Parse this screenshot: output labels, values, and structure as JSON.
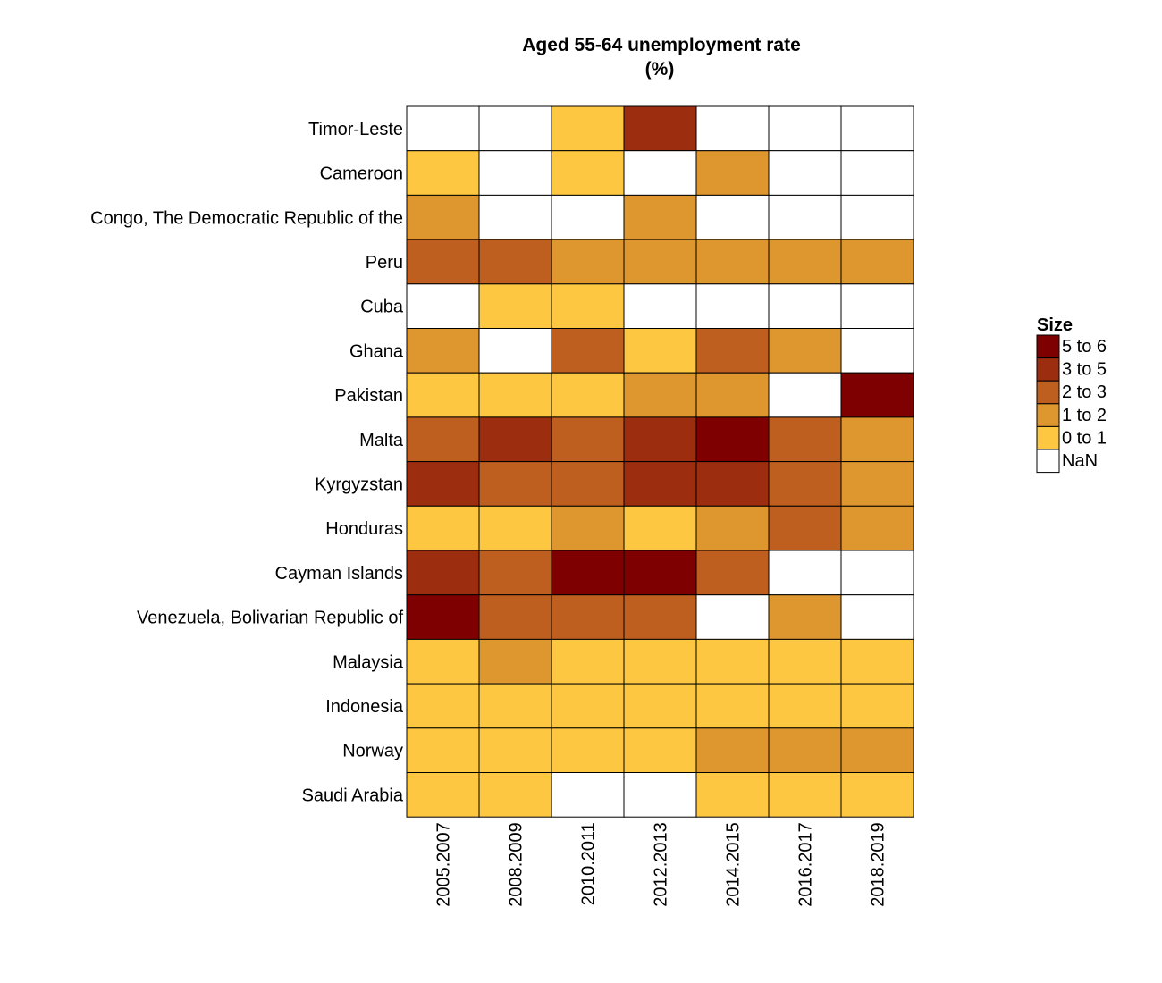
{
  "chart_data": {
    "type": "heatmap",
    "title": "Aged 55-64 unemployment rate",
    "subtitle": "(%)",
    "columns": [
      "2005.2007",
      "2008.2009",
      "2010.2011",
      "2012.2013",
      "2014.2015",
      "2016.2017",
      "2018.2019"
    ],
    "rows": [
      "Timor-Leste",
      "Cameroon",
      "Congo, The Democratic Republic of the",
      "Peru",
      "Cuba",
      "Ghana",
      "Pakistan",
      "Malta",
      "Kyrgyzstan",
      "Honduras",
      "Cayman Islands",
      "Venezuela, Bolivarian Republic of",
      "Malaysia",
      "Indonesia",
      "Norway",
      "Saudi Arabia"
    ],
    "cells": [
      [
        "NaN",
        "NaN",
        "0 to 1",
        "3 to 5",
        "NaN",
        "NaN",
        "NaN"
      ],
      [
        "0 to 1",
        "NaN",
        "0 to 1",
        "NaN",
        "1 to 2",
        "NaN",
        "NaN"
      ],
      [
        "1 to 2",
        "NaN",
        "NaN",
        "1 to 2",
        "NaN",
        "NaN",
        "NaN"
      ],
      [
        "2 to 3",
        "2 to 3",
        "1 to 2",
        "1 to 2",
        "1 to 2",
        "1 to 2",
        "1 to 2"
      ],
      [
        "NaN",
        "0 to 1",
        "0 to 1",
        "NaN",
        "NaN",
        "NaN",
        "NaN"
      ],
      [
        "1 to 2",
        "NaN",
        "2 to 3",
        "0 to 1",
        "2 to 3",
        "1 to 2",
        "NaN"
      ],
      [
        "0 to 1",
        "0 to 1",
        "0 to 1",
        "1 to 2",
        "1 to 2",
        "NaN",
        "5 to 6"
      ],
      [
        "2 to 3",
        "3 to 5",
        "2 to 3",
        "3 to 5",
        "5 to 6",
        "2 to 3",
        "1 to 2"
      ],
      [
        "3 to 5",
        "2 to 3",
        "2 to 3",
        "3 to 5",
        "3 to 5",
        "2 to 3",
        "1 to 2"
      ],
      [
        "0 to 1",
        "0 to 1",
        "1 to 2",
        "0 to 1",
        "1 to 2",
        "2 to 3",
        "1 to 2"
      ],
      [
        "3 to 5",
        "2 to 3",
        "5 to 6",
        "5 to 6",
        "2 to 3",
        "NaN",
        "NaN"
      ],
      [
        "5 to 6",
        "2 to 3",
        "2 to 3",
        "2 to 3",
        "NaN",
        "1 to 2",
        "NaN"
      ],
      [
        "0 to 1",
        "1 to 2",
        "0 to 1",
        "0 to 1",
        "0 to 1",
        "0 to 1",
        "0 to 1"
      ],
      [
        "0 to 1",
        "0 to 1",
        "0 to 1",
        "0 to 1",
        "0 to 1",
        "0 to 1",
        "0 to 1"
      ],
      [
        "0 to 1",
        "0 to 1",
        "0 to 1",
        "0 to 1",
        "1 to 2",
        "1 to 2",
        "1 to 2"
      ],
      [
        "0 to 1",
        "0 to 1",
        "NaN",
        "NaN",
        "0 to 1",
        "0 to 1",
        "0 to 1"
      ]
    ],
    "legend": {
      "title": "Size",
      "placement": "right",
      "entries": [
        {
          "label": "5 to 6",
          "color": "#7f0000"
        },
        {
          "label": "3 to 5",
          "color": "#9c2d0f"
        },
        {
          "label": "2 to 3",
          "color": "#be5e1f"
        },
        {
          "label": "1 to 2",
          "color": "#de962f"
        },
        {
          "label": "0 to 1",
          "color": "#fdc741"
        },
        {
          "label": "NaN",
          "color": "#ffffff"
        }
      ]
    },
    "x_tick_orientation": "vertical",
    "grid": false
  }
}
